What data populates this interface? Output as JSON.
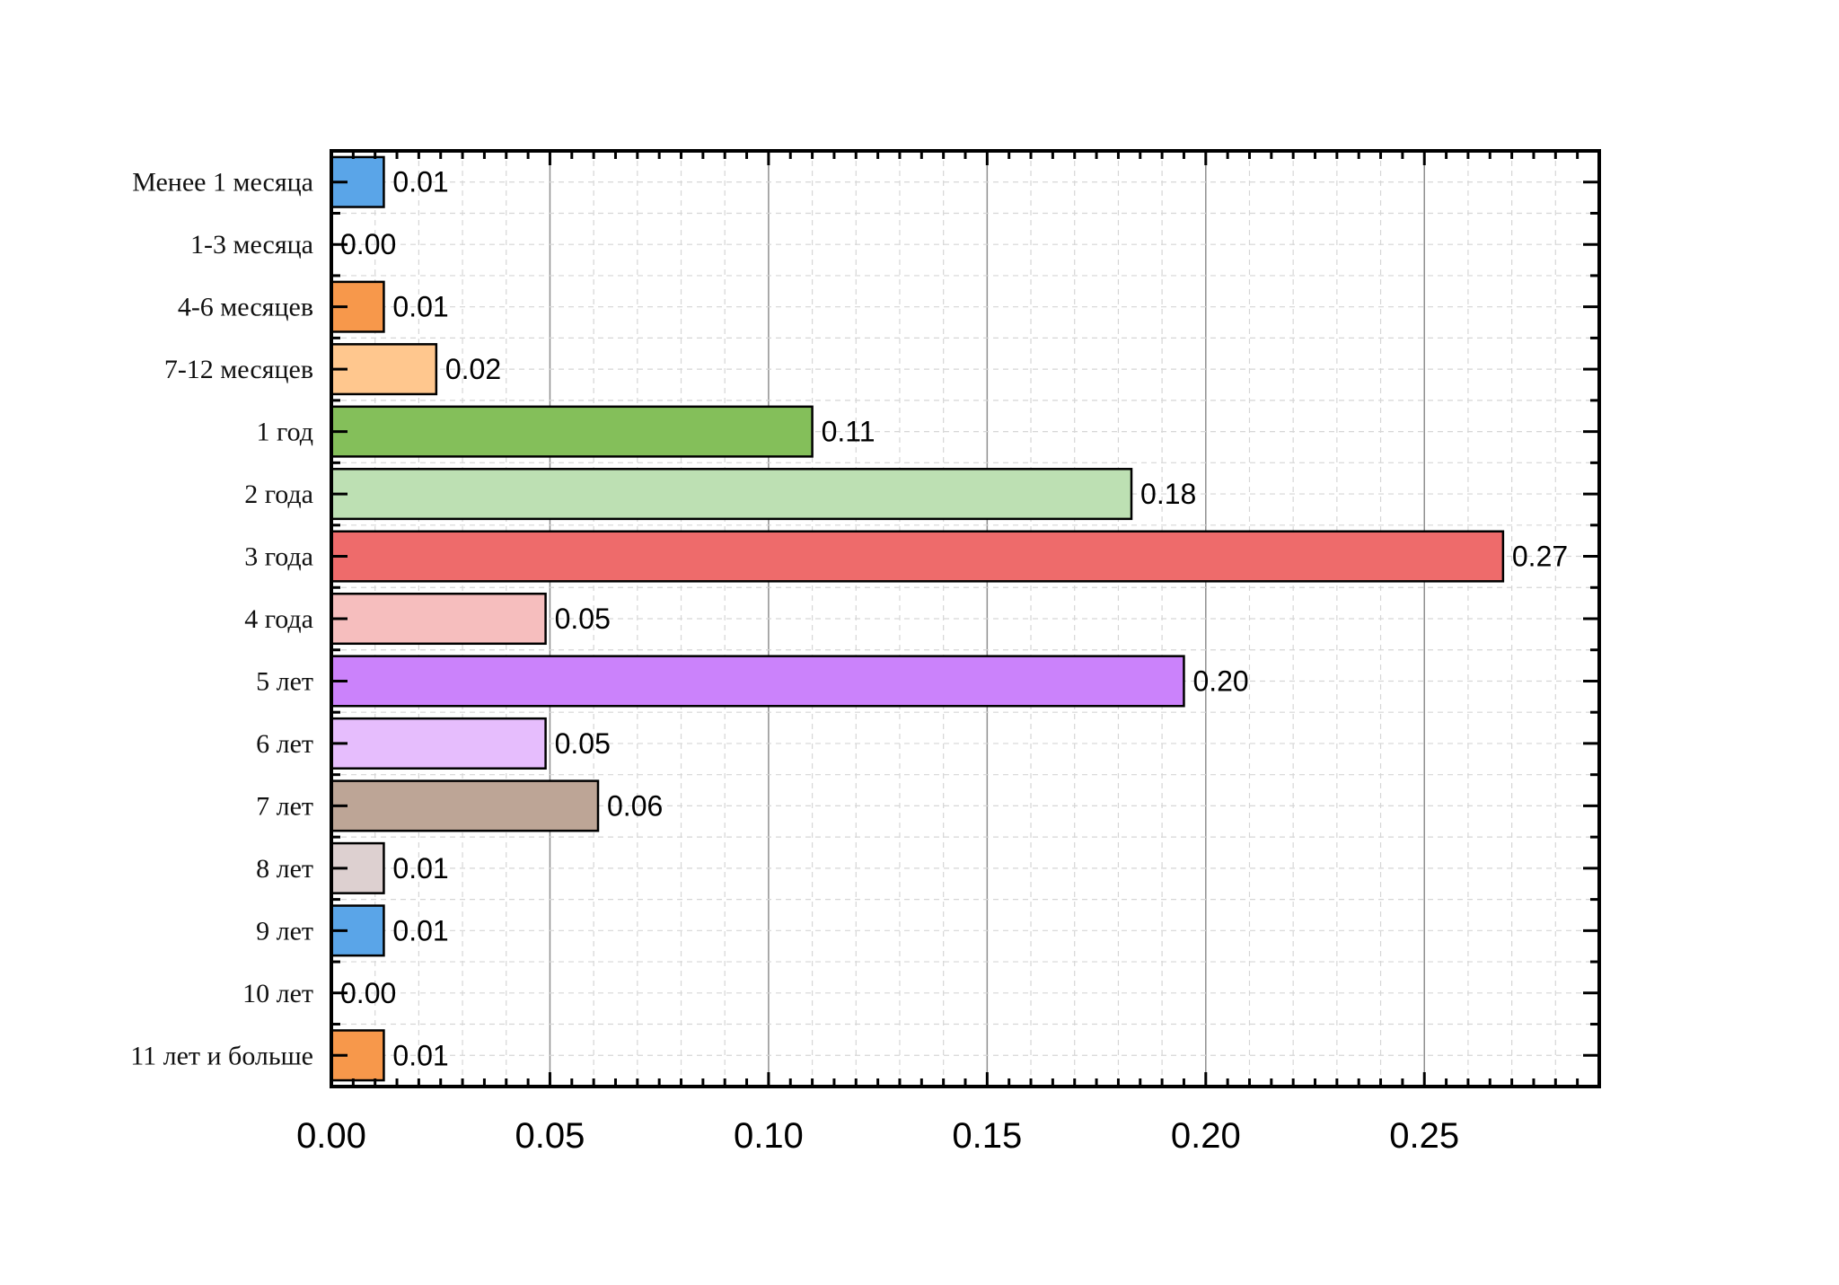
{
  "chart_data": {
    "type": "bar",
    "orientation": "horizontal",
    "title": "",
    "xlabel": "",
    "ylabel": "",
    "xlim": [
      0,
      0.29
    ],
    "xticks": [
      "0.00",
      "0.05",
      "0.10",
      "0.15",
      "0.20",
      "0.25"
    ],
    "grid": true,
    "legend": "none",
    "categories": [
      "Менее 1 месяца",
      "1-3 месяца",
      "4-6 месяцев",
      "7-12 месяцев",
      "1 год",
      "2 года",
      "3 года",
      "4 года",
      "5 лет",
      "6 лет",
      "7 лет",
      "8 лет",
      "9 лет",
      "10 лет",
      "11 лет и больше"
    ],
    "values": [
      0.012,
      0.0,
      0.012,
      0.024,
      0.11,
      0.183,
      0.268,
      0.049,
      0.195,
      0.049,
      0.061,
      0.012,
      0.012,
      0.0,
      0.012
    ],
    "value_labels": [
      "0.01",
      "0.00",
      "0.01",
      "0.02",
      "0.11",
      "0.18",
      "0.27",
      "0.05",
      "0.20",
      "0.05",
      "0.06",
      "0.01",
      "0.01",
      "0.00",
      "0.01"
    ],
    "colors": [
      "#5aa5e8",
      "#ffffff",
      "#f7984b",
      "#ffc78e",
      "#84bf5a",
      "#bde0b3",
      "#ee6b6b",
      "#f6bebe",
      "#cb82fb",
      "#e6bdfd",
      "#bda596",
      "#ddd0d0",
      "#5aa5e8",
      "#ffffff",
      "#f7984b"
    ]
  }
}
